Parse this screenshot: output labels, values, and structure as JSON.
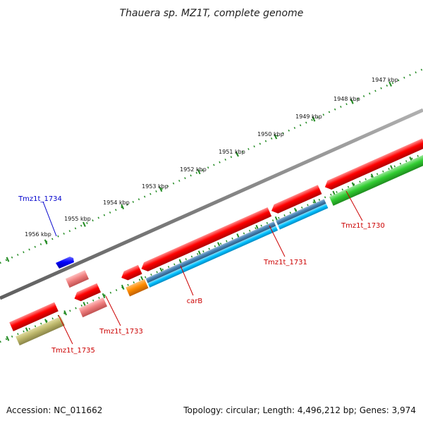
{
  "title": "Thauera sp. MZ1T, complete genome",
  "scale_labels": [
    "1947 kbp",
    "1948 kbp",
    "1949 kbp",
    "1950 kbp",
    "1951 kbp",
    "1952 kbp",
    "1953 kbp",
    "1954 kbp",
    "1955 kbp",
    "1956 kbp"
  ],
  "gene_labels": [
    {
      "name": "Tmz1t_1734",
      "color": "#0000cc"
    },
    {
      "name": "Tmz1t_1730",
      "color": "#cc0000"
    },
    {
      "name": "Tmz1t_1731",
      "color": "#cc0000"
    },
    {
      "name": "carB",
      "color": "#cc0000"
    },
    {
      "name": "Tmz1t_1733",
      "color": "#cc0000"
    },
    {
      "name": "Tmz1t_1735",
      "color": "#cc0000"
    }
  ],
  "feature_colors": {
    "cds": "#ff0000",
    "cds_light": "#f08080",
    "blue_feature": "#0000ff",
    "steel_blue": "#4682b4",
    "cyan": "#00bfff",
    "green": "#32cd32",
    "orange": "#ff8c00",
    "khaki": "#bdb76b",
    "backbone": "#808080",
    "ticks": "#228b22"
  },
  "footer": {
    "accession": "Accession: NC_011662",
    "topology": "Topology: circular; Length: 4,496,212 bp; Genes: 3,974"
  }
}
